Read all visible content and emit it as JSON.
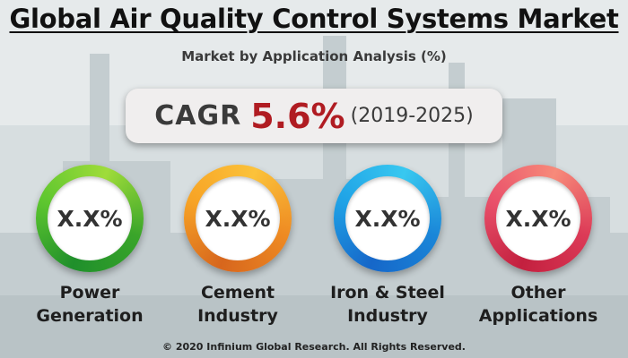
{
  "chart_data": {
    "type": "other",
    "title": "Global Air Quality Control Systems Market",
    "subtitle": "Market by Application Analysis (%)",
    "cagr": {
      "label": "CAGR",
      "value": "5.6%",
      "period": "(2019-2025)"
    },
    "segments": [
      {
        "name_line1": "Power",
        "name_line2": "Generation",
        "value": "X.X%",
        "color": "#3aa52a"
      },
      {
        "name_line1": "Cement",
        "name_line2": "Industry",
        "value": "X.X%",
        "color": "#f08a22"
      },
      {
        "name_line1": "Iron & Steel",
        "name_line2": "Industry",
        "value": "X.X%",
        "color": "#1a96e0"
      },
      {
        "name_line1": "Other",
        "name_line2": "Applications",
        "value": "X.X%",
        "color": "#dc3a57"
      }
    ]
  },
  "footer": "© 2020 Infinium Global Research. All Rights Reserved."
}
